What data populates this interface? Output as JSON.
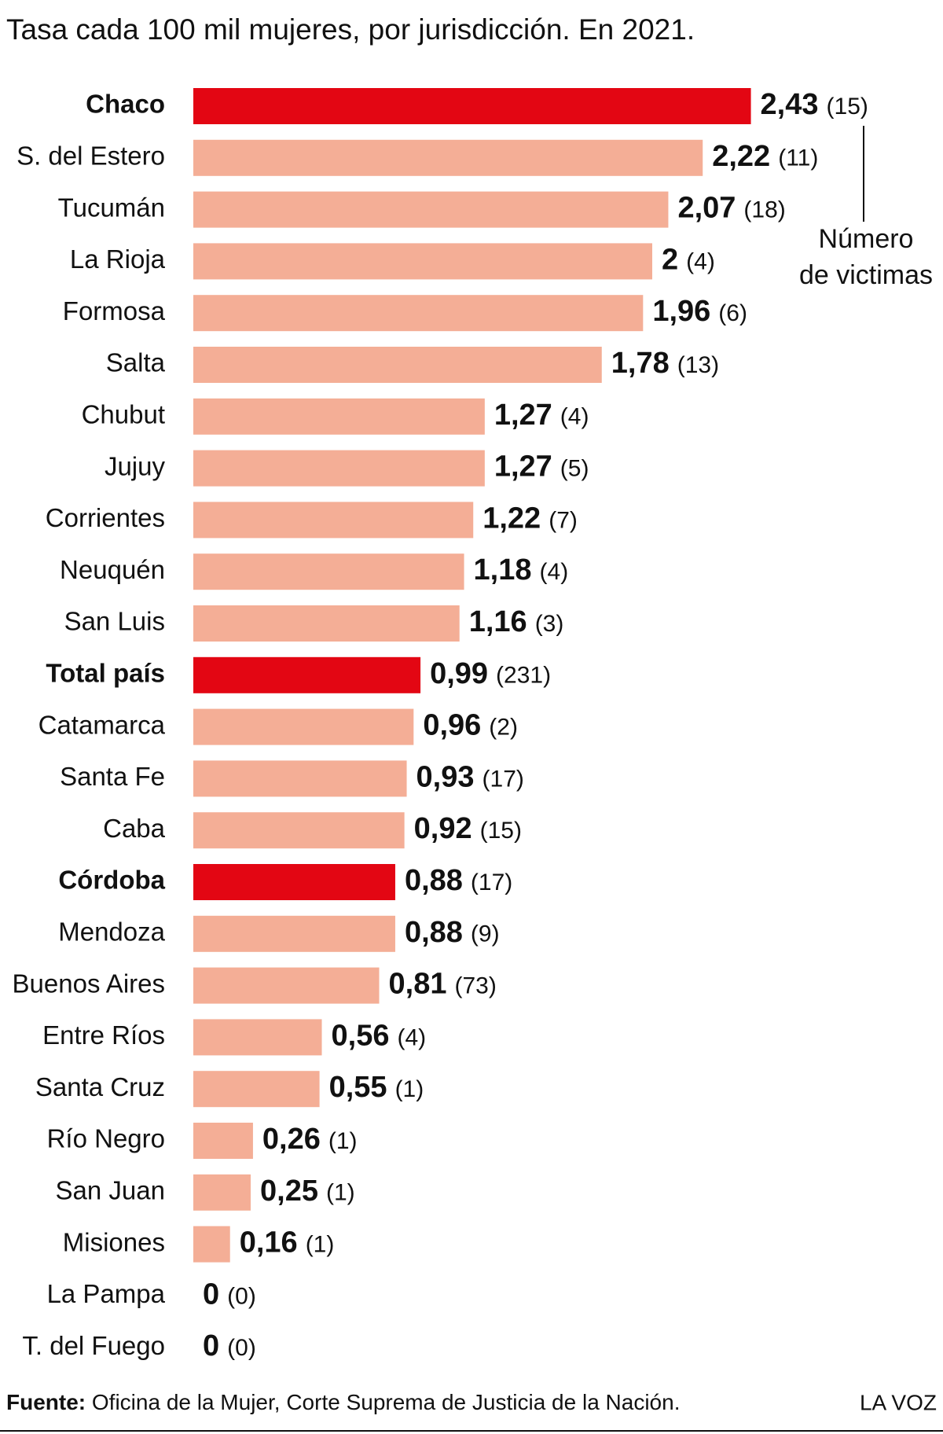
{
  "chart_data": {
    "type": "bar",
    "orientation": "horizontal",
    "title": "Tasa cada 100 mil mujeres, por jurisdicción. En 2021.",
    "categories": [
      "Chaco",
      "S. del Estero",
      "Tucumán",
      "La Rioja",
      "Formosa",
      "Salta",
      "Chubut",
      "Jujuy",
      "Corrientes",
      "Neuquén",
      "San Luis",
      "Total país",
      "Catamarca",
      "Santa Fe",
      "Caba",
      "Córdoba",
      "Mendoza",
      "Buenos Aires",
      "Entre Ríos",
      "Santa Cruz",
      "Río Negro",
      "San Juan",
      "Misiones",
      "La Pampa",
      "T. del Fuego"
    ],
    "values": [
      2.43,
      2.22,
      2.07,
      2,
      1.96,
      1.78,
      1.27,
      1.27,
      1.22,
      1.18,
      1.16,
      0.99,
      0.96,
      0.93,
      0.92,
      0.88,
      0.88,
      0.81,
      0.56,
      0.55,
      0.26,
      0.25,
      0.16,
      0,
      0
    ],
    "value_labels": [
      "2,43",
      "2,22",
      "2,07",
      "2",
      "1,96",
      "1,78",
      "1,27",
      "1,27",
      "1,22",
      "1,18",
      "1,16",
      "0,99",
      "0,96",
      "0,93",
      "0,92",
      "0,88",
      "0,88",
      "0,81",
      "0,56",
      "0,55",
      "0,26",
      "0,25",
      "0,16",
      "0",
      "0"
    ],
    "color": "#f4ae96",
    "colors": [
      "#e30613",
      "#f4ae96",
      "#f4ae96",
      "#f4ae96",
      "#f4ae96",
      "#f4ae96",
      "#f4ae96",
      "#f4ae96",
      "#f4ae96",
      "#f4ae96",
      "#f4ae96",
      "#e30613",
      "#f4ae96",
      "#f4ae96",
      "#f4ae96",
      "#e30613",
      "#f4ae96",
      "#f4ae96",
      "#f4ae96",
      "#f4ae96",
      "#f4ae96",
      "#f4ae96",
      "#f4ae96",
      "#f4ae96",
      "#f4ae96"
    ],
    "victims": {
      "values": [
        15,
        11,
        18,
        4,
        6,
        13,
        4,
        5,
        7,
        4,
        3,
        231,
        2,
        17,
        15,
        17,
        9,
        73,
        4,
        1,
        1,
        1,
        1,
        0,
        0
      ],
      "value_labels": [
        "(15)",
        "(11)",
        "(18)",
        "(4)",
        "(6)",
        "(13)",
        "(4)",
        "(5)",
        "(7)",
        "(4)",
        "(3)",
        "(231)",
        "(2)",
        "(17)",
        "(15)",
        "(17)",
        "(9)",
        "(73)",
        "(4)",
        "(1)",
        "(1)",
        "(1)",
        "(1)",
        "(0)",
        "(0)"
      ]
    },
    "annotation": [
      "Número",
      "de victimas"
    ],
    "xlim": [
      0,
      3
    ],
    "source_label": "Fuente:",
    "source": "Oficina de la Mujer, Corte Suprema de Justicia de la Nación.",
    "brand": "LA VOZ"
  }
}
